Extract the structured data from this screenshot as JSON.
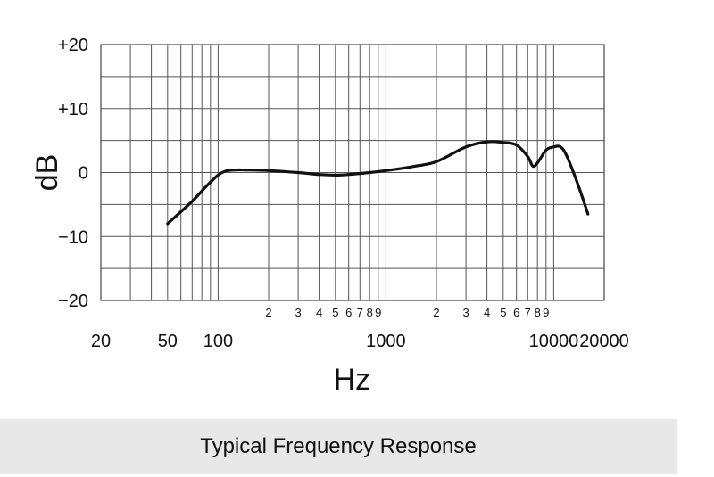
{
  "chart_data": {
    "type": "line",
    "title": "",
    "xlabel": "Hz",
    "ylabel": "dB",
    "xscale": "log",
    "xlim": [
      20,
      20000
    ],
    "ylim": [
      -20,
      20
    ],
    "grid": true,
    "x_major_ticks": [
      {
        "value": 20,
        "label": "20"
      },
      {
        "value": 50,
        "label": "50"
      },
      {
        "value": 100,
        "label": "100"
      },
      {
        "value": 1000,
        "label": "1000"
      },
      {
        "value": 10000,
        "label": "10000"
      },
      {
        "value": 20000,
        "label": "20000"
      }
    ],
    "x_minor_ticks": [
      {
        "value": 200,
        "label": "2"
      },
      {
        "value": 300,
        "label": "3"
      },
      {
        "value": 400,
        "label": "4"
      },
      {
        "value": 500,
        "label": "5"
      },
      {
        "value": 600,
        "label": "6"
      },
      {
        "value": 700,
        "label": "7"
      },
      {
        "value": 800,
        "label": "8"
      },
      {
        "value": 900,
        "label": "9"
      },
      {
        "value": 2000,
        "label": "2"
      },
      {
        "value": 3000,
        "label": "3"
      },
      {
        "value": 4000,
        "label": "4"
      },
      {
        "value": 5000,
        "label": "5"
      },
      {
        "value": 6000,
        "label": "6"
      },
      {
        "value": 7000,
        "label": "7"
      },
      {
        "value": 8000,
        "label": "8"
      },
      {
        "value": 9000,
        "label": "9"
      }
    ],
    "y_ticks": [
      {
        "value": 20,
        "label": "+20"
      },
      {
        "value": 10,
        "label": "+10"
      },
      {
        "value": 0,
        "label": "0"
      },
      {
        "value": -10,
        "label": "−10"
      },
      {
        "value": -20,
        "label": "−20"
      }
    ],
    "series": [
      {
        "x": [
          50,
          70,
          90,
          110,
          150,
          200,
          300,
          400,
          500,
          600,
          800,
          1000,
          1500,
          2000,
          3000,
          4000,
          5000,
          6000,
          7000,
          7500,
          8000,
          9000,
          10000,
          11000,
          12000,
          14000,
          16000
        ],
        "y": [
          -8,
          -4.5,
          -1.5,
          0.2,
          0.4,
          0.3,
          0,
          -0.3,
          -0.4,
          -0.3,
          0,
          0.3,
          1,
          1.7,
          4,
          4.8,
          4.7,
          4.3,
          2.5,
          1,
          1.5,
          3.5,
          4,
          4,
          2.5,
          -2,
          -6.5
        ]
      }
    ]
  },
  "caption": "Typical Frequency Response"
}
